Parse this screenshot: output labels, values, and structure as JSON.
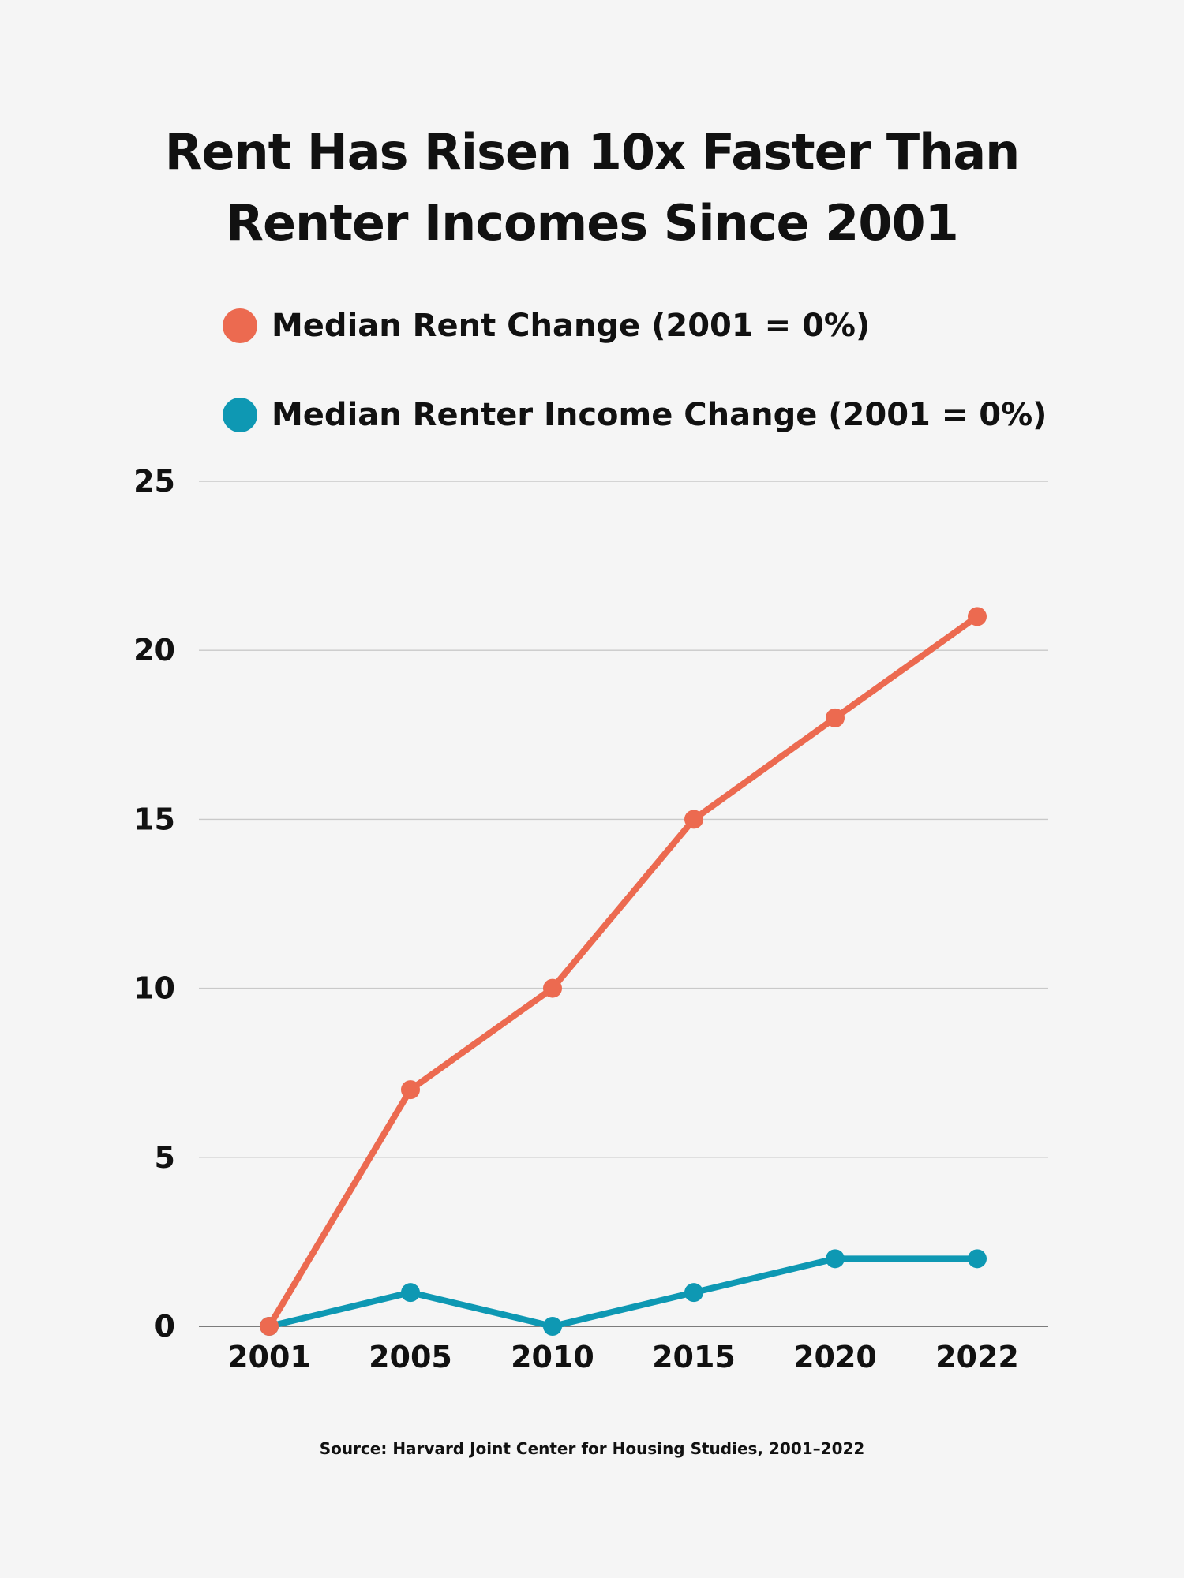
{
  "chart_data": {
    "type": "line",
    "title_lines": [
      "Rent Has Risen 10x Faster Than",
      "Renter Incomes Since 2001"
    ],
    "x": [
      "2001",
      "2005",
      "2010",
      "2015",
      "2020",
      "2022"
    ],
    "series": [
      {
        "name": "Median Rent Change (2001 = 0%)",
        "color": "#ec6a50",
        "values": [
          0,
          7,
          10,
          15,
          18,
          21
        ]
      },
      {
        "name": "Median Renter Income Change (2001 = 0%)",
        "color": "#0e98b3",
        "values": [
          0,
          1,
          0,
          1,
          2,
          2
        ]
      }
    ],
    "ylim": [
      0,
      25
    ],
    "yticks": [
      "0",
      "5",
      "10",
      "15",
      "20",
      "25"
    ],
    "grid": "horizontal",
    "legend": "top-left",
    "source": "Source: Harvard Joint Center for Housing Studies, 2001–2022"
  }
}
